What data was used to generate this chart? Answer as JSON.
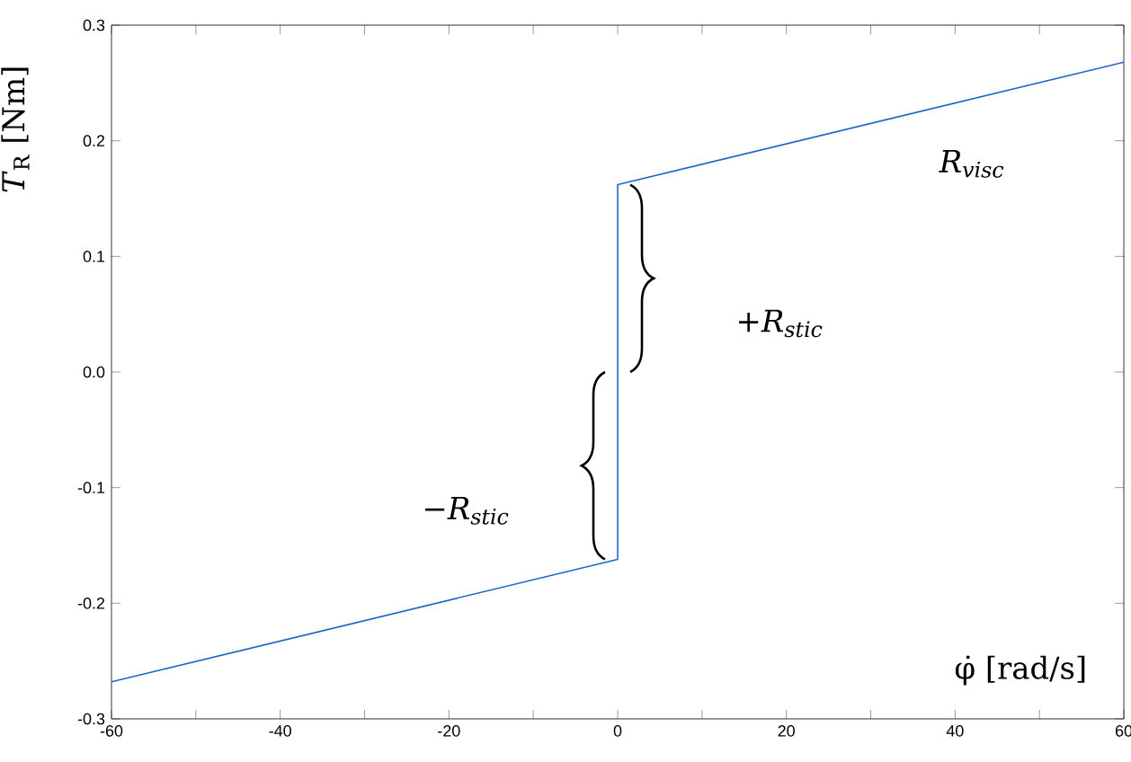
{
  "chart_data": {
    "type": "line",
    "xlabel": "φ̇ [rad/s]",
    "ylabel": "*T*$_{R}$ [Nm]",
    "x": [
      -60,
      0,
      0,
      60
    ],
    "series": [
      {
        "color": "#1f66c8",
        "values": [
          -0.268,
          -0.162,
          0.162,
          0.268
        ]
      }
    ],
    "xlim": [
      -60,
      60
    ],
    "xticks": [
      -60,
      {
        "value": -50,
        "label": null
      },
      -40,
      {
        "value": -30,
        "label": null
      },
      -20,
      {
        "value": -10,
        "label": null
      },
      0,
      {
        "value": 10,
        "label": null
      },
      20,
      {
        "value": 30,
        "label": null
      },
      40,
      {
        "value": 50,
        "label": null
      },
      60
    ],
    "ylim": [
      -0.3,
      0.3
    ],
    "yticks": [
      -0.3,
      -0.2,
      -0.1,
      {
        "value": 0,
        "label": "0.0"
      },
      0.1,
      0.2,
      0.3
    ],
    "annotations": [
      "R$_{visc}$",
      "+R$_{stic}$",
      "−R$_{stic}$"
    ],
    "grid": false,
    "marker": "none",
    "line_style": "solid"
  }
}
